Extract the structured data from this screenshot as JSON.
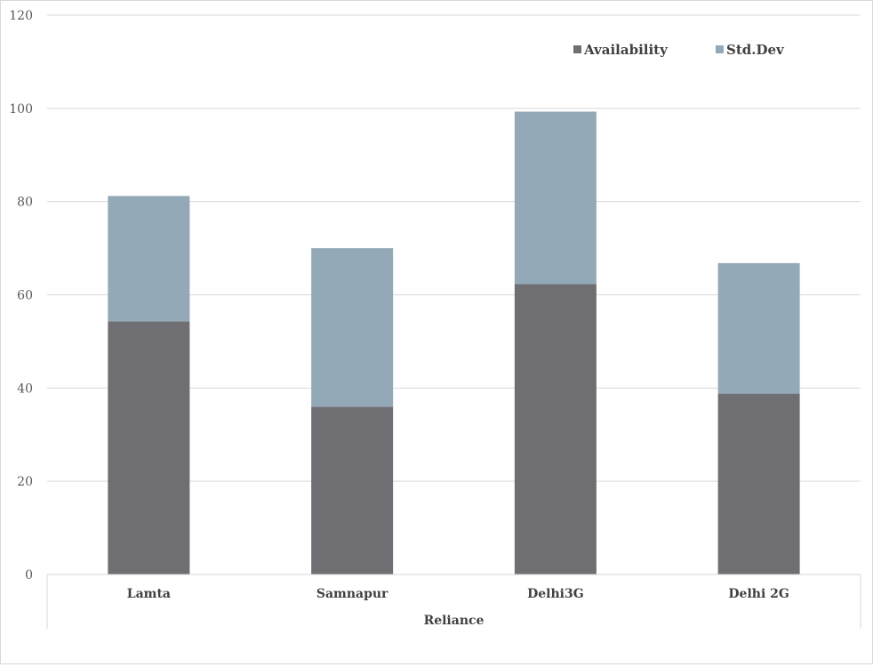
{
  "chart_data": {
    "type": "bar",
    "stacked": true,
    "title": "",
    "xlabel": "",
    "ylabel": "",
    "group_label": "Reliance",
    "categories": [
      "Lamta",
      "Samnapur",
      "Delhi3G",
      "Delhi 2G"
    ],
    "series": [
      {
        "name": "Availability",
        "values": [
          54.3,
          36.0,
          62.3,
          38.8
        ],
        "color": "#6f6e73"
      },
      {
        "name": "Std.Dev",
        "values": [
          26.9,
          34.0,
          37.0,
          28.0
        ],
        "color": "#93a9b8"
      }
    ],
    "ylim": [
      0,
      120
    ],
    "yticks": [
      0,
      20,
      40,
      60,
      80,
      100,
      120
    ],
    "grid": true,
    "legend_position": "top-right",
    "colors": {
      "grid": "#d9d9d9",
      "axis_text": "#595959",
      "label_text": "#404040"
    }
  }
}
